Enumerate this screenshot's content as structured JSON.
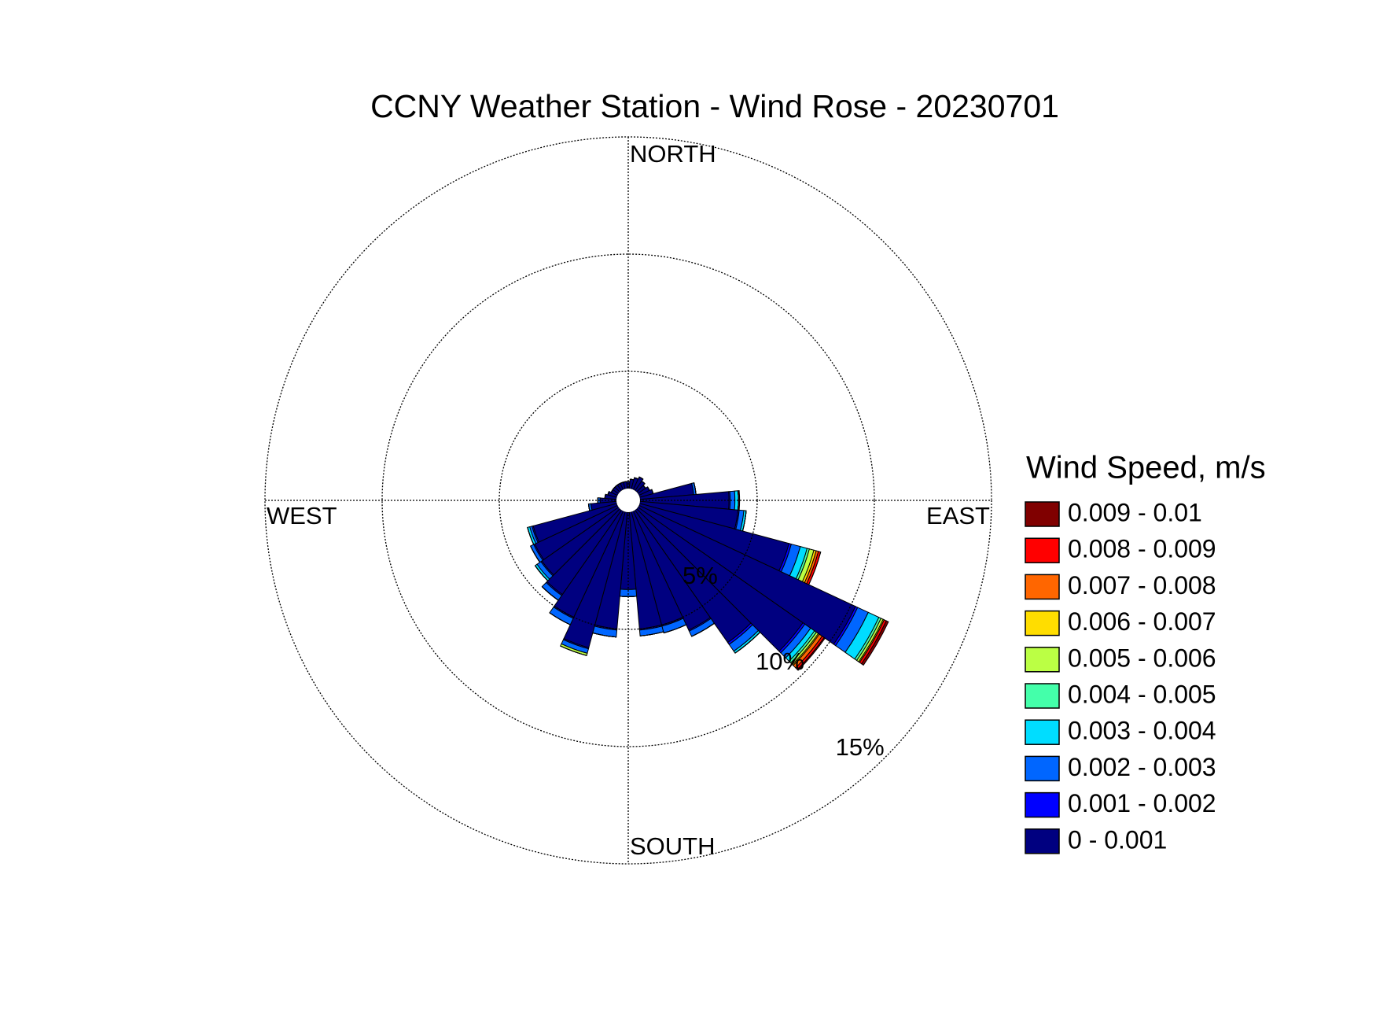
{
  "chart_data": {
    "type": "windrose",
    "title": "CCNY Weather Station - Wind Rose - 20230701",
    "legend_title": "Wind Speed, m/s",
    "direction_labels": [
      "NORTH",
      "EAST",
      "SOUTH",
      "WEST"
    ],
    "directions": [
      0,
      10,
      20,
      30,
      40,
      50,
      60,
      70,
      80,
      90,
      100,
      110,
      120,
      130,
      140,
      150,
      160,
      170,
      180,
      190,
      200,
      210,
      220,
      230,
      240,
      250,
      260,
      270,
      280,
      290,
      300,
      310,
      320,
      330,
      340,
      350
    ],
    "rlim": [
      0,
      15
    ],
    "rticks": [
      {
        "value": 5,
        "label": "5%"
      },
      {
        "value": 10,
        "label": "10%"
      },
      {
        "value": 15,
        "label": "15%"
      }
    ],
    "grid": true,
    "series": [
      {
        "name": "0 - 0.001",
        "color": "#000080",
        "values": [
          0.3,
          0.4,
          0.5,
          0.6,
          0.5,
          0.4,
          0.5,
          0.6,
          2.3,
          3.8,
          4.2,
          6.6,
          10.2,
          8.6,
          6.9,
          5.6,
          5.0,
          5.0,
          3.3,
          5.0,
          6.0,
          5.0,
          4.4,
          4.0,
          3.9,
          3.7,
          1.1,
          0.7,
          0.5,
          0.4,
          0.3,
          0.3,
          0.3,
          0.3,
          0.3,
          0.3
        ]
      },
      {
        "name": "0.001 - 0.002",
        "color": "#0000ff",
        "values": [
          0,
          0,
          0,
          0,
          0,
          0,
          0,
          0,
          0,
          0.05,
          0.05,
          0.1,
          0.1,
          0.1,
          0.1,
          0.05,
          0.05,
          0.05,
          0,
          0.05,
          0.05,
          0.05,
          0.05,
          0.05,
          0.05,
          0.05,
          0,
          0,
          0,
          0,
          0,
          0,
          0,
          0,
          0,
          0
        ]
      },
      {
        "name": "0.002 - 0.003",
        "color": "#0066ff",
        "values": [
          0,
          0,
          0,
          0,
          0,
          0,
          0,
          0,
          0.1,
          0.2,
          0.2,
          0.4,
          0.5,
          0.3,
          0.35,
          0.25,
          0.3,
          0.25,
          0.3,
          0.3,
          0.2,
          0.3,
          0.25,
          0.2,
          0.15,
          0.1,
          0.1,
          0.1,
          0,
          0,
          0,
          0,
          0,
          0,
          0,
          0
        ]
      },
      {
        "name": "0.003 - 0.004",
        "color": "#00ddff",
        "values": [
          0,
          0,
          0,
          0,
          0,
          0,
          0,
          0,
          0,
          0.15,
          0.1,
          0.3,
          0.5,
          0.2,
          0.1,
          0,
          0,
          0,
          0,
          0,
          0,
          0,
          0,
          0.1,
          0,
          0.1,
          0,
          0,
          0,
          0,
          0,
          0,
          0,
          0,
          0,
          0
        ]
      },
      {
        "name": "0.004 - 0.005",
        "color": "#44ffaa",
        "values": [
          0,
          0,
          0,
          0,
          0,
          0,
          0,
          0,
          0,
          0,
          0,
          0.1,
          0.1,
          0.1,
          0,
          0,
          0,
          0,
          0,
          0,
          0,
          0,
          0,
          0,
          0,
          0,
          0,
          0,
          0,
          0,
          0,
          0,
          0,
          0,
          0,
          0
        ]
      },
      {
        "name": "0.005 - 0.006",
        "color": "#bbff44",
        "values": [
          0,
          0,
          0,
          0,
          0,
          0,
          0,
          0,
          0,
          0,
          0,
          0.2,
          0.1,
          0.1,
          0,
          0,
          0,
          0,
          0,
          0,
          0.1,
          0,
          0,
          0,
          0,
          0,
          0,
          0,
          0,
          0,
          0,
          0,
          0,
          0,
          0,
          0
        ]
      },
      {
        "name": "0.006 - 0.007",
        "color": "#ffdd00",
        "values": [
          0,
          0,
          0,
          0,
          0,
          0,
          0,
          0,
          0,
          0,
          0,
          0.1,
          0.05,
          0.05,
          0,
          0,
          0,
          0,
          0,
          0,
          0,
          0,
          0,
          0,
          0,
          0,
          0,
          0,
          0,
          0,
          0,
          0,
          0,
          0,
          0,
          0
        ]
      },
      {
        "name": "0.007 - 0.008",
        "color": "#ff6600",
        "values": [
          0,
          0,
          0,
          0,
          0,
          0,
          0,
          0,
          0,
          0,
          0,
          0.1,
          0,
          0.15,
          0,
          0,
          0,
          0,
          0,
          0,
          0,
          0,
          0,
          0,
          0,
          0,
          0,
          0,
          0,
          0,
          0,
          0,
          0,
          0,
          0,
          0
        ]
      },
      {
        "name": "0.008 - 0.009",
        "color": "#ff0000",
        "values": [
          0,
          0,
          0,
          0,
          0,
          0,
          0,
          0,
          0,
          0,
          0,
          0.1,
          0.1,
          0.1,
          0,
          0,
          0,
          0,
          0,
          0,
          0,
          0,
          0,
          0,
          0,
          0,
          0,
          0,
          0,
          0,
          0,
          0,
          0,
          0,
          0,
          0
        ]
      },
      {
        "name": "0.009 - 0.01",
        "color": "#800000",
        "values": [
          0,
          0,
          0,
          0,
          0,
          0,
          0,
          0,
          0,
          0.05,
          0,
          0,
          0.1,
          0.05,
          0,
          0,
          0,
          0,
          0,
          0,
          0,
          0,
          0,
          0,
          0,
          0,
          0,
          0,
          0,
          0,
          0,
          0,
          0,
          0,
          0,
          0
        ]
      }
    ]
  }
}
